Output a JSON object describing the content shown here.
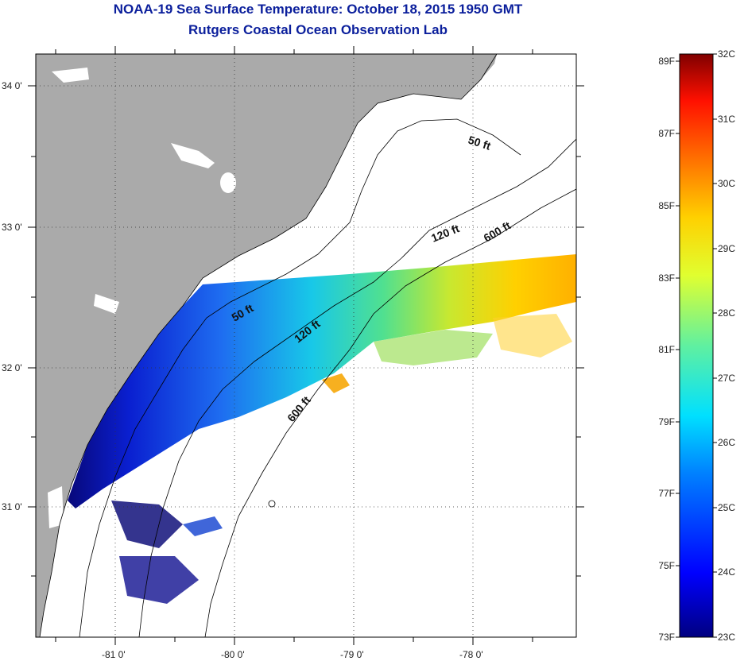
{
  "title": "NOAA-19 Sea Surface Temperature:  October 18, 2015 1950 GMT",
  "subtitle": "Rutgers Coastal Ocean Observation Lab",
  "map": {
    "lon_ticks": [
      "-81 0'",
      "-80 0'",
      "-79 0'",
      "-78 0'"
    ],
    "lat_ticks": [
      "34 0'",
      "33 0'",
      "32 0'",
      "31 0'"
    ],
    "contour_labels": [
      "50 ft",
      "120 ft",
      "600 ft",
      "50 ft",
      "120 ft",
      "600 ft"
    ],
    "colors": {
      "land": "#aaaaaa",
      "cold": "#0a0a8c",
      "warm": "#ffb400"
    }
  },
  "colorbar": {
    "fahrenheit": [
      "89F",
      "87F",
      "85F",
      "83F",
      "81F",
      "79F",
      "77F",
      "75F",
      "73F"
    ],
    "celsius": [
      "32C",
      "31C",
      "30C",
      "29C",
      "28C",
      "27C",
      "26C",
      "25C",
      "24C",
      "23C"
    ]
  }
}
